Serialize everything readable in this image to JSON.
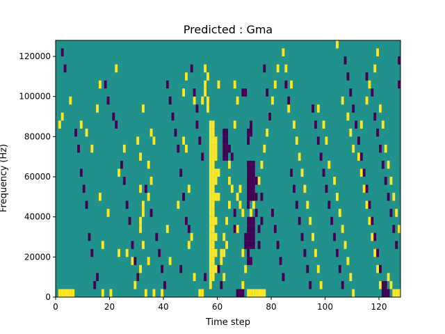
{
  "figure": {
    "title": "Predicted : Gma",
    "xlabel": "Time step",
    "ylabel": "Frequency (Hz)"
  },
  "colors": {
    "background_value": "#21918c",
    "high_value": "#fde725",
    "low_value": "#440154",
    "axis": "#000000"
  },
  "chart_data": {
    "type": "heatmap",
    "title": "Predicted : Gma",
    "xlabel": "Time step",
    "ylabel": "Frequency (Hz)",
    "xlim": [
      0,
      128
    ],
    "ylim": [
      0,
      128000
    ],
    "x_ticks": [
      0,
      20,
      40,
      60,
      80,
      100,
      120
    ],
    "y_ticks": [
      0,
      20000,
      40000,
      60000,
      80000,
      100000,
      120000
    ],
    "x_tick_labels": [
      "0",
      "20",
      "40",
      "60",
      "80",
      "100",
      "120"
    ],
    "y_tick_labels": [
      "0",
      "20000",
      "40000",
      "60000",
      "80000",
      "100000",
      "120000"
    ],
    "grid": false,
    "colormap": "viridis",
    "value_levels": [
      -1,
      0,
      1
    ],
    "default_value": 0,
    "cell_width": 1,
    "cell_height": 4000,
    "high_cells": [
      [
        1,
        0
      ],
      [
        2,
        0
      ],
      [
        3,
        0
      ],
      [
        4,
        0
      ],
      [
        5,
        0
      ],
      [
        6,
        0
      ],
      [
        1,
        84
      ],
      [
        2,
        88
      ],
      [
        5,
        96
      ],
      [
        9,
        84
      ],
      [
        11,
        80
      ],
      [
        13,
        72
      ],
      [
        15,
        92
      ],
      [
        16,
        104
      ],
      [
        16,
        48
      ],
      [
        19,
        40
      ],
      [
        17,
        24
      ],
      [
        17,
        0
      ],
      [
        20,
        0
      ],
      [
        22,
        112
      ],
      [
        23,
        60
      ],
      [
        25,
        72
      ],
      [
        23,
        20
      ],
      [
        26,
        20
      ],
      [
        28,
        16
      ],
      [
        29,
        4
      ],
      [
        30,
        76
      ],
      [
        31,
        68
      ],
      [
        32,
        92
      ],
      [
        31,
        52
      ],
      [
        32,
        40
      ],
      [
        31,
        32
      ],
      [
        32,
        24
      ],
      [
        31,
        12
      ],
      [
        30,
        8
      ],
      [
        34,
        64
      ],
      [
        35,
        56
      ],
      [
        34,
        48
      ],
      [
        34,
        16
      ],
      [
        33,
        0
      ],
      [
        35,
        80
      ],
      [
        36,
        76
      ],
      [
        31,
        36
      ],
      [
        32,
        44
      ],
      [
        36,
        0
      ],
      [
        39,
        0
      ],
      [
        41,
        32
      ],
      [
        42,
        16
      ],
      [
        45,
        44
      ],
      [
        47,
        76
      ],
      [
        48,
        72
      ],
      [
        49,
        52
      ],
      [
        47,
        100
      ],
      [
        48,
        108
      ],
      [
        49,
        24
      ],
      [
        50,
        28
      ],
      [
        51,
        96
      ],
      [
        51,
        8
      ],
      [
        53,
        0
      ],
      [
        54,
        0
      ],
      [
        54,
        96
      ],
      [
        55,
        112
      ],
      [
        55,
        104
      ],
      [
        55,
        100
      ],
      [
        56,
        108
      ],
      [
        56,
        96
      ],
      [
        56,
        92
      ],
      [
        57,
        84
      ],
      [
        57,
        80
      ],
      [
        57,
        76
      ],
      [
        57,
        72
      ],
      [
        57,
        68
      ],
      [
        57,
        64
      ],
      [
        57,
        60
      ],
      [
        57,
        56
      ],
      [
        57,
        52
      ],
      [
        57,
        48
      ],
      [
        57,
        44
      ],
      [
        57,
        40
      ],
      [
        57,
        36
      ],
      [
        57,
        32
      ],
      [
        57,
        28
      ],
      [
        57,
        24
      ],
      [
        57,
        20
      ],
      [
        57,
        16
      ],
      [
        57,
        12
      ],
      [
        57,
        8
      ],
      [
        57,
        4
      ],
      [
        58,
        84
      ],
      [
        58,
        80
      ],
      [
        58,
        76
      ],
      [
        58,
        72
      ],
      [
        58,
        68
      ],
      [
        58,
        64
      ],
      [
        58,
        60
      ],
      [
        58,
        56
      ],
      [
        58,
        52
      ],
      [
        58,
        48
      ],
      [
        58,
        44
      ],
      [
        58,
        40
      ],
      [
        58,
        36
      ],
      [
        58,
        32
      ],
      [
        58,
        28
      ],
      [
        58,
        24
      ],
      [
        58,
        20
      ],
      [
        58,
        16
      ],
      [
        58,
        12
      ],
      [
        58,
        8
      ],
      [
        59,
        76
      ],
      [
        59,
        72
      ],
      [
        59,
        68
      ],
      [
        59,
        60
      ],
      [
        59,
        56
      ],
      [
        59,
        48
      ],
      [
        59,
        36
      ],
      [
        59,
        28
      ],
      [
        59,
        20
      ],
      [
        59,
        12
      ],
      [
        60,
        104
      ],
      [
        60,
        60
      ],
      [
        60,
        48
      ],
      [
        61,
        20
      ],
      [
        61,
        16
      ],
      [
        62,
        28
      ],
      [
        62,
        20
      ],
      [
        62,
        8
      ],
      [
        63,
        36
      ],
      [
        63,
        24
      ],
      [
        64,
        64
      ],
      [
        64,
        56
      ],
      [
        65,
        52
      ],
      [
        64,
        44
      ],
      [
        66,
        84
      ],
      [
        66,
        104
      ],
      [
        67,
        96
      ],
      [
        67,
        48
      ],
      [
        67,
        32
      ],
      [
        68,
        52
      ],
      [
        68,
        44
      ],
      [
        69,
        40
      ],
      [
        69,
        20
      ],
      [
        69,
        4
      ],
      [
        70,
        12
      ],
      [
        71,
        0
      ],
      [
        72,
        0
      ],
      [
        73,
        0
      ],
      [
        74,
        0
      ],
      [
        75,
        0
      ],
      [
        76,
        0
      ],
      [
        77,
        0
      ],
      [
        72,
        40
      ],
      [
        73,
        44
      ],
      [
        74,
        48
      ],
      [
        75,
        56
      ],
      [
        76,
        64
      ],
      [
        77,
        72
      ],
      [
        78,
        80
      ],
      [
        79,
        88
      ],
      [
        80,
        96
      ],
      [
        81,
        104
      ],
      [
        82,
        112
      ],
      [
        84,
        120
      ],
      [
        85,
        112
      ],
      [
        87,
        104
      ],
      [
        86,
        92
      ],
      [
        88,
        84
      ],
      [
        89,
        76
      ],
      [
        90,
        68
      ],
      [
        91,
        60
      ],
      [
        92,
        52
      ],
      [
        93,
        44
      ],
      [
        94,
        36
      ],
      [
        95,
        28
      ],
      [
        96,
        20
      ],
      [
        97,
        12
      ],
      [
        98,
        4
      ],
      [
        97,
        92
      ],
      [
        99,
        84
      ],
      [
        100,
        76
      ],
      [
        101,
        64
      ],
      [
        103,
        56
      ],
      [
        104,
        48
      ],
      [
        105,
        40
      ],
      [
        106,
        32
      ],
      [
        107,
        24
      ],
      [
        108,
        16
      ],
      [
        109,
        8
      ],
      [
        110,
        0
      ],
      [
        104,
        124
      ],
      [
        106,
        96
      ],
      [
        108,
        88
      ],
      [
        109,
        80
      ],
      [
        110,
        72
      ],
      [
        112,
        68
      ],
      [
        113,
        60
      ],
      [
        114,
        52
      ],
      [
        115,
        44
      ],
      [
        116,
        36
      ],
      [
        117,
        28
      ],
      [
        118,
        20
      ],
      [
        119,
        12
      ],
      [
        120,
        4
      ],
      [
        113,
        84
      ],
      [
        115,
        96
      ],
      [
        116,
        104
      ],
      [
        118,
        112
      ],
      [
        119,
        120
      ],
      [
        120,
        92
      ],
      [
        121,
        84
      ],
      [
        122,
        72
      ],
      [
        123,
        64
      ],
      [
        124,
        56
      ],
      [
        125,
        48
      ],
      [
        126,
        40
      ],
      [
        127,
        32
      ],
      [
        125,
        0
      ],
      [
        126,
        0
      ],
      [
        127,
        0
      ],
      [
        124,
        4
      ],
      [
        123,
        8
      ]
    ],
    "low_cells": [
      [
        2,
        120
      ],
      [
        3,
        112
      ],
      [
        7,
        80
      ],
      [
        8,
        72
      ],
      [
        9,
        60
      ],
      [
        10,
        52
      ],
      [
        11,
        44
      ],
      [
        12,
        28
      ],
      [
        13,
        20
      ],
      [
        14,
        4
      ],
      [
        15,
        8
      ],
      [
        18,
        104
      ],
      [
        19,
        96
      ],
      [
        21,
        88
      ],
      [
        22,
        84
      ],
      [
        24,
        64
      ],
      [
        25,
        56
      ],
      [
        26,
        44
      ],
      [
        27,
        36
      ],
      [
        28,
        24
      ],
      [
        29,
        16
      ],
      [
        30,
        8
      ],
      [
        33,
        52
      ],
      [
        35,
        40
      ],
      [
        37,
        28
      ],
      [
        38,
        20
      ],
      [
        39,
        12
      ],
      [
        40,
        4
      ],
      [
        41,
        104
      ],
      [
        42,
        96
      ],
      [
        43,
        88
      ],
      [
        44,
        80
      ],
      [
        45,
        72
      ],
      [
        46,
        60
      ],
      [
        46,
        12
      ],
      [
        47,
        48
      ],
      [
        48,
        36
      ],
      [
        49,
        32
      ],
      [
        50,
        112
      ],
      [
        51,
        100
      ],
      [
        52,
        92
      ],
      [
        52,
        84
      ],
      [
        53,
        76
      ],
      [
        54,
        68
      ],
      [
        55,
        8
      ],
      [
        60,
        12
      ],
      [
        61,
        4
      ],
      [
        62,
        80
      ],
      [
        62,
        76
      ],
      [
        62,
        72
      ],
      [
        62,
        68
      ],
      [
        63,
        80
      ],
      [
        63,
        76
      ],
      [
        63,
        72
      ],
      [
        63,
        68
      ],
      [
        64,
        72
      ],
      [
        65,
        68
      ],
      [
        66,
        40
      ],
      [
        66,
        32
      ],
      [
        67,
        0
      ],
      [
        68,
        0
      ],
      [
        69,
        0
      ],
      [
        69,
        100
      ],
      [
        70,
        100
      ],
      [
        70,
        28
      ],
      [
        70,
        24
      ],
      [
        71,
        80
      ],
      [
        71,
        76
      ],
      [
        71,
        64
      ],
      [
        71,
        60
      ],
      [
        71,
        56
      ],
      [
        71,
        52
      ],
      [
        71,
        48
      ],
      [
        71,
        44
      ],
      [
        71,
        36
      ],
      [
        71,
        32
      ],
      [
        71,
        28
      ],
      [
        71,
        24
      ],
      [
        71,
        20
      ],
      [
        71,
        16
      ],
      [
        72,
        84
      ],
      [
        72,
        80
      ],
      [
        72,
        64
      ],
      [
        72,
        60
      ],
      [
        72,
        56
      ],
      [
        72,
        52
      ],
      [
        72,
        48
      ],
      [
        72,
        36
      ],
      [
        72,
        32
      ],
      [
        72,
        28
      ],
      [
        72,
        24
      ],
      [
        72,
        16
      ],
      [
        73,
        64
      ],
      [
        73,
        60
      ],
      [
        73,
        56
      ],
      [
        73,
        52
      ],
      [
        73,
        48
      ],
      [
        73,
        36
      ],
      [
        73,
        32
      ],
      [
        73,
        28
      ],
      [
        73,
        24
      ],
      [
        74,
        56
      ],
      [
        74,
        48
      ],
      [
        74,
        40
      ],
      [
        75,
        32
      ],
      [
        75,
        24
      ],
      [
        76,
        48
      ],
      [
        76,
        36
      ],
      [
        77,
        112
      ],
      [
        78,
        100
      ],
      [
        79,
        88
      ],
      [
        80,
        40
      ],
      [
        81,
        32
      ],
      [
        82,
        24
      ],
      [
        83,
        16
      ],
      [
        84,
        8
      ],
      [
        85,
        104
      ],
      [
        86,
        96
      ],
      [
        87,
        60
      ],
      [
        88,
        52
      ],
      [
        89,
        44
      ],
      [
        90,
        36
      ],
      [
        91,
        28
      ],
      [
        92,
        20
      ],
      [
        93,
        12
      ],
      [
        94,
        4
      ],
      [
        95,
        92
      ],
      [
        96,
        84
      ],
      [
        97,
        76
      ],
      [
        98,
        68
      ],
      [
        99,
        60
      ],
      [
        100,
        52
      ],
      [
        101,
        44
      ],
      [
        102,
        36
      ],
      [
        103,
        28
      ],
      [
        104,
        20
      ],
      [
        105,
        12
      ],
      [
        106,
        4
      ],
      [
        107,
        116
      ],
      [
        108,
        108
      ],
      [
        109,
        100
      ],
      [
        110,
        92
      ],
      [
        111,
        84
      ],
      [
        112,
        76
      ],
      [
        113,
        68
      ],
      [
        114,
        60
      ],
      [
        115,
        52
      ],
      [
        116,
        44
      ],
      [
        117,
        36
      ],
      [
        118,
        28
      ],
      [
        119,
        20
      ],
      [
        120,
        12
      ],
      [
        121,
        0
      ],
      [
        122,
        0
      ],
      [
        123,
        0
      ],
      [
        121,
        4
      ],
      [
        122,
        4
      ],
      [
        115,
        108
      ],
      [
        117,
        100
      ],
      [
        118,
        88
      ],
      [
        119,
        80
      ],
      [
        120,
        72
      ],
      [
        121,
        64
      ],
      [
        122,
        56
      ],
      [
        123,
        48
      ],
      [
        124,
        40
      ],
      [
        125,
        32
      ],
      [
        126,
        24
      ],
      [
        127,
        116
      ],
      [
        127,
        104
      ]
    ]
  }
}
